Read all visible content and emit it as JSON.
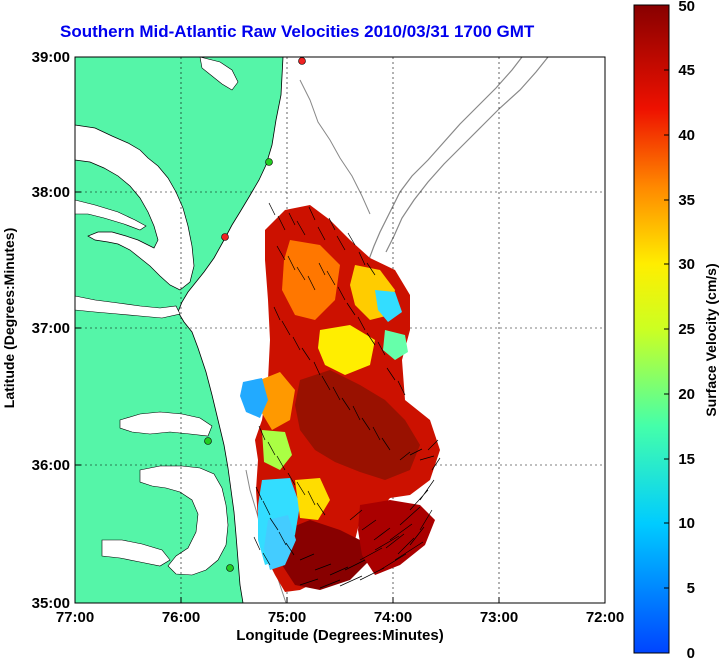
{
  "title": "Southern Mid-Atlantic Raw Velocities 2010/03/31 1700 GMT",
  "x_axis": {
    "label": "Longitude (Degrees:Minutes)",
    "ticks": [
      "77:00",
      "76:00",
      "75:00",
      "74:00",
      "73:00",
      "72:00"
    ]
  },
  "y_axis": {
    "label": "Latitude (Degrees:Minutes)",
    "ticks": [
      "39:00",
      "38:00",
      "37:00",
      "36:00",
      "35:00"
    ]
  },
  "colorbar": {
    "label": "Surface Velocity (cm/s)",
    "ticks": [
      "50",
      "45",
      "40",
      "35",
      "30",
      "25",
      "20",
      "15",
      "10",
      "5",
      "0"
    ],
    "range": [
      0,
      50
    ]
  },
  "colors": {
    "land": "#55f5a8",
    "ocean": "#ffffff",
    "title": "#0000ee",
    "station_active": "#22cc22",
    "station_inactive": "#ee2222"
  },
  "stations": [
    {
      "name": "station-green",
      "lon": -75.1,
      "lat": 38.2,
      "status": "active"
    },
    {
      "name": "station-red",
      "lon": -75.5,
      "lat": 37.7,
      "status": "inactive"
    },
    {
      "name": "station-green",
      "lon": -75.7,
      "lat": 36.2,
      "status": "active"
    },
    {
      "name": "station-green",
      "lon": -75.5,
      "lat": 35.2,
      "status": "active"
    },
    {
      "name": "station-red",
      "lon": -74.8,
      "lat": 39.0,
      "status": "inactive"
    }
  ]
}
